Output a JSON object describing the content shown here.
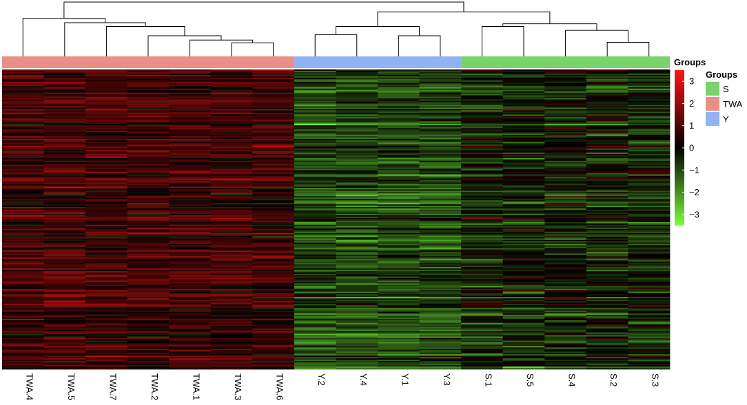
{
  "chart_data": {
    "type": "heatmap",
    "columns": [
      "TWA.4",
      "TWA.5",
      "TWA.7",
      "TWA.2",
      "TWA.1",
      "TWA.3",
      "TWA.6",
      "Y.2",
      "Y.4",
      "Y.1",
      "Y.3",
      "S.1",
      "S.5",
      "S.4",
      "S.2",
      "S.3"
    ],
    "column_groups": [
      "TWA",
      "TWA",
      "TWA",
      "TWA",
      "TWA",
      "TWA",
      "TWA",
      "Y",
      "Y",
      "Y",
      "Y",
      "S",
      "S",
      "S",
      "S",
      "S"
    ],
    "annotation_title": "Groups",
    "legend": {
      "title": "Groups",
      "entries": [
        {
          "label": "S",
          "color": "#77d36a"
        },
        {
          "label": "TWA",
          "color": "#ea8f86"
        },
        {
          "label": "Y",
          "color": "#8fb3f4"
        }
      ]
    },
    "colorbar": {
      "min": -3.5,
      "max": 3.5,
      "ticks": [
        3,
        2,
        1,
        0,
        -1,
        -2,
        -3
      ],
      "tick_labels": [
        "3",
        "2",
        "1",
        "0",
        "−1",
        "−2",
        "−3"
      ],
      "colors": {
        "low": "#7cff3a",
        "mid": "#000000",
        "high": "#ff1414"
      }
    },
    "group_means": {
      "TWA": 0.9,
      "Y": -1.0,
      "S": -0.4
    },
    "group_spread": {
      "TWA": 0.9,
      "Y": 0.9,
      "S": 1.2
    },
    "n_rows": 220,
    "dendrogram": {
      "type": "column-hierarchical-clustering",
      "merges": [
        {
          "a": "TWA.3",
          "b": "TWA.6",
          "h": 0.25
        },
        {
          "a": "TWA.1",
          "b": "m1",
          "h": 0.3
        },
        {
          "a": "TWA.2",
          "b": "m2",
          "h": 0.38
        },
        {
          "a": "TWA.7",
          "b": "m3",
          "h": 0.55
        },
        {
          "a": "TWA.5",
          "b": "m4",
          "h": 0.62
        },
        {
          "a": "TWA.4",
          "b": "m5",
          "h": 0.7
        },
        {
          "a": "Y.1",
          "b": "Y.3",
          "h": 0.38
        },
        {
          "a": "Y.2",
          "b": "Y.4",
          "h": 0.4
        },
        {
          "a": "m7",
          "b": "m8",
          "h": 0.55
        },
        {
          "a": "S.2",
          "b": "S.3",
          "h": 0.26
        },
        {
          "a": "S.4",
          "b": "m10",
          "h": 0.48
        },
        {
          "a": "S.1",
          "b": "S.5",
          "h": 0.55
        },
        {
          "a": "m12",
          "b": "m11",
          "h": 0.6
        },
        {
          "a": "m9",
          "b": "m13",
          "h": 0.82
        },
        {
          "a": "m6",
          "b": "m14",
          "h": 1.0
        }
      ]
    }
  }
}
